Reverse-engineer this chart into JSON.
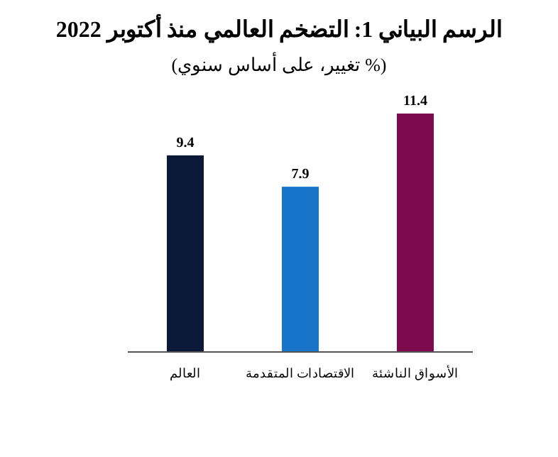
{
  "chart_data": {
    "type": "bar",
    "title": "الرسم البياني 1: التضخم العالمي منذ أكتوبر 2022",
    "subtitle": "(% تغيير، على أساس سنوي)",
    "categories": [
      "العالم",
      "الاقتصادات المتقدمة",
      "الأسواق الناشئة"
    ],
    "values": [
      9.4,
      7.9,
      11.4
    ],
    "colors": [
      "#0c1838",
      "#1874c8",
      "#7c0a4c"
    ],
    "data_labels": true
  }
}
